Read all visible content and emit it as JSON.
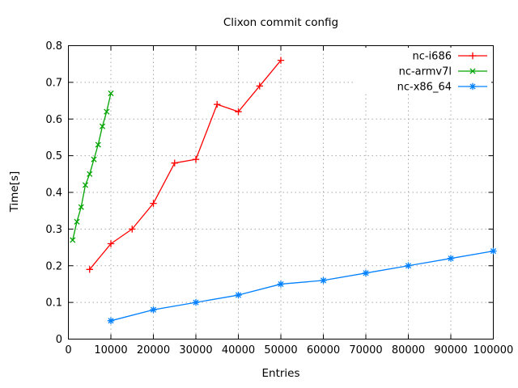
{
  "chart_data": {
    "type": "line",
    "title": "Clixon commit config",
    "xlabel": "Entries",
    "ylabel": "Time[s]",
    "xlim": [
      0,
      100000
    ],
    "ylim": [
      0,
      0.8
    ],
    "xticks": [
      0,
      10000,
      20000,
      30000,
      40000,
      50000,
      60000,
      70000,
      80000,
      90000,
      100000
    ],
    "xtick_labels": [
      "0",
      "10000",
      "20000",
      "30000",
      "40000",
      "50000",
      "60000",
      "70000",
      "80000",
      "90000",
      "100000"
    ],
    "yticks": [
      0,
      0.1,
      0.2,
      0.3,
      0.4,
      0.5,
      0.6,
      0.7,
      0.8
    ],
    "ytick_labels": [
      "0",
      "0.1",
      "0.2",
      "0.3",
      "0.4",
      "0.5",
      "0.6",
      "0.7",
      "0.8"
    ],
    "grid": "dotted",
    "grid_color": "#a8a8a8",
    "border_color": "#000000",
    "background_color": "#ffffff",
    "legend_position": "top-right-inside",
    "series": [
      {
        "name": "nc-i686",
        "color": "#ff0000",
        "marker": "plus",
        "points": [
          [
            5000,
            0.19
          ],
          [
            10000,
            0.26
          ],
          [
            15000,
            0.3
          ],
          [
            20000,
            0.37
          ],
          [
            25000,
            0.48
          ],
          [
            30000,
            0.49
          ],
          [
            35000,
            0.64
          ],
          [
            40000,
            0.62
          ],
          [
            45000,
            0.69
          ],
          [
            50000,
            0.76
          ]
        ]
      },
      {
        "name": "nc-armv7l",
        "color": "#00a400",
        "marker": "x",
        "points": [
          [
            1000,
            0.27
          ],
          [
            2000,
            0.32
          ],
          [
            3000,
            0.36
          ],
          [
            4000,
            0.42
          ],
          [
            5000,
            0.45
          ],
          [
            6000,
            0.49
          ],
          [
            7000,
            0.53
          ],
          [
            8000,
            0.58
          ],
          [
            9000,
            0.62
          ],
          [
            10000,
            0.67
          ]
        ]
      },
      {
        "name": "nc-x86_64",
        "color": "#0080ff",
        "marker": "asterisk",
        "points": [
          [
            10000,
            0.05
          ],
          [
            20000,
            0.08
          ],
          [
            30000,
            0.1
          ],
          [
            40000,
            0.12
          ],
          [
            50000,
            0.15
          ],
          [
            60000,
            0.16
          ],
          [
            70000,
            0.18
          ],
          [
            80000,
            0.2
          ],
          [
            90000,
            0.22
          ],
          [
            100000,
            0.24
          ]
        ]
      }
    ]
  }
}
